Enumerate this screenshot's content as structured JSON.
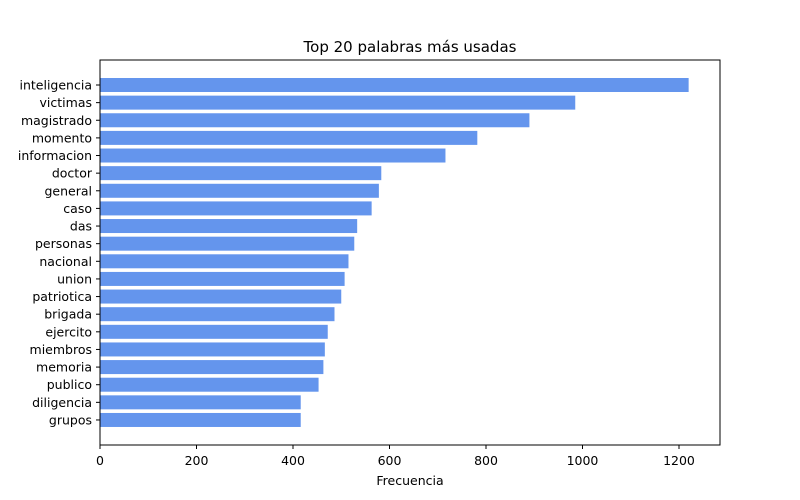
{
  "chart_data": {
    "type": "bar",
    "orientation": "horizontal",
    "title": "Top 20 palabras más usadas",
    "xlabel": "Frecuencia",
    "ylabel": "",
    "xlim": [
      0,
      1285
    ],
    "xticks": [
      0,
      200,
      400,
      600,
      800,
      1000,
      1200
    ],
    "grid": false,
    "bar_color": "#6495ED",
    "categories": [
      "inteligencia",
      "victimas",
      "magistrado",
      "momento",
      "informacion",
      "doctor",
      "general",
      "caso",
      "das",
      "personas",
      "nacional",
      "union",
      "patriotica",
      "brigada",
      "ejercito",
      "miembros",
      "memoria",
      "publico",
      "diligencia",
      "grupos"
    ],
    "values": [
      1220,
      985,
      890,
      782,
      716,
      583,
      578,
      563,
      533,
      527,
      515,
      507,
      500,
      486,
      472,
      466,
      463,
      453,
      416,
      416
    ]
  }
}
